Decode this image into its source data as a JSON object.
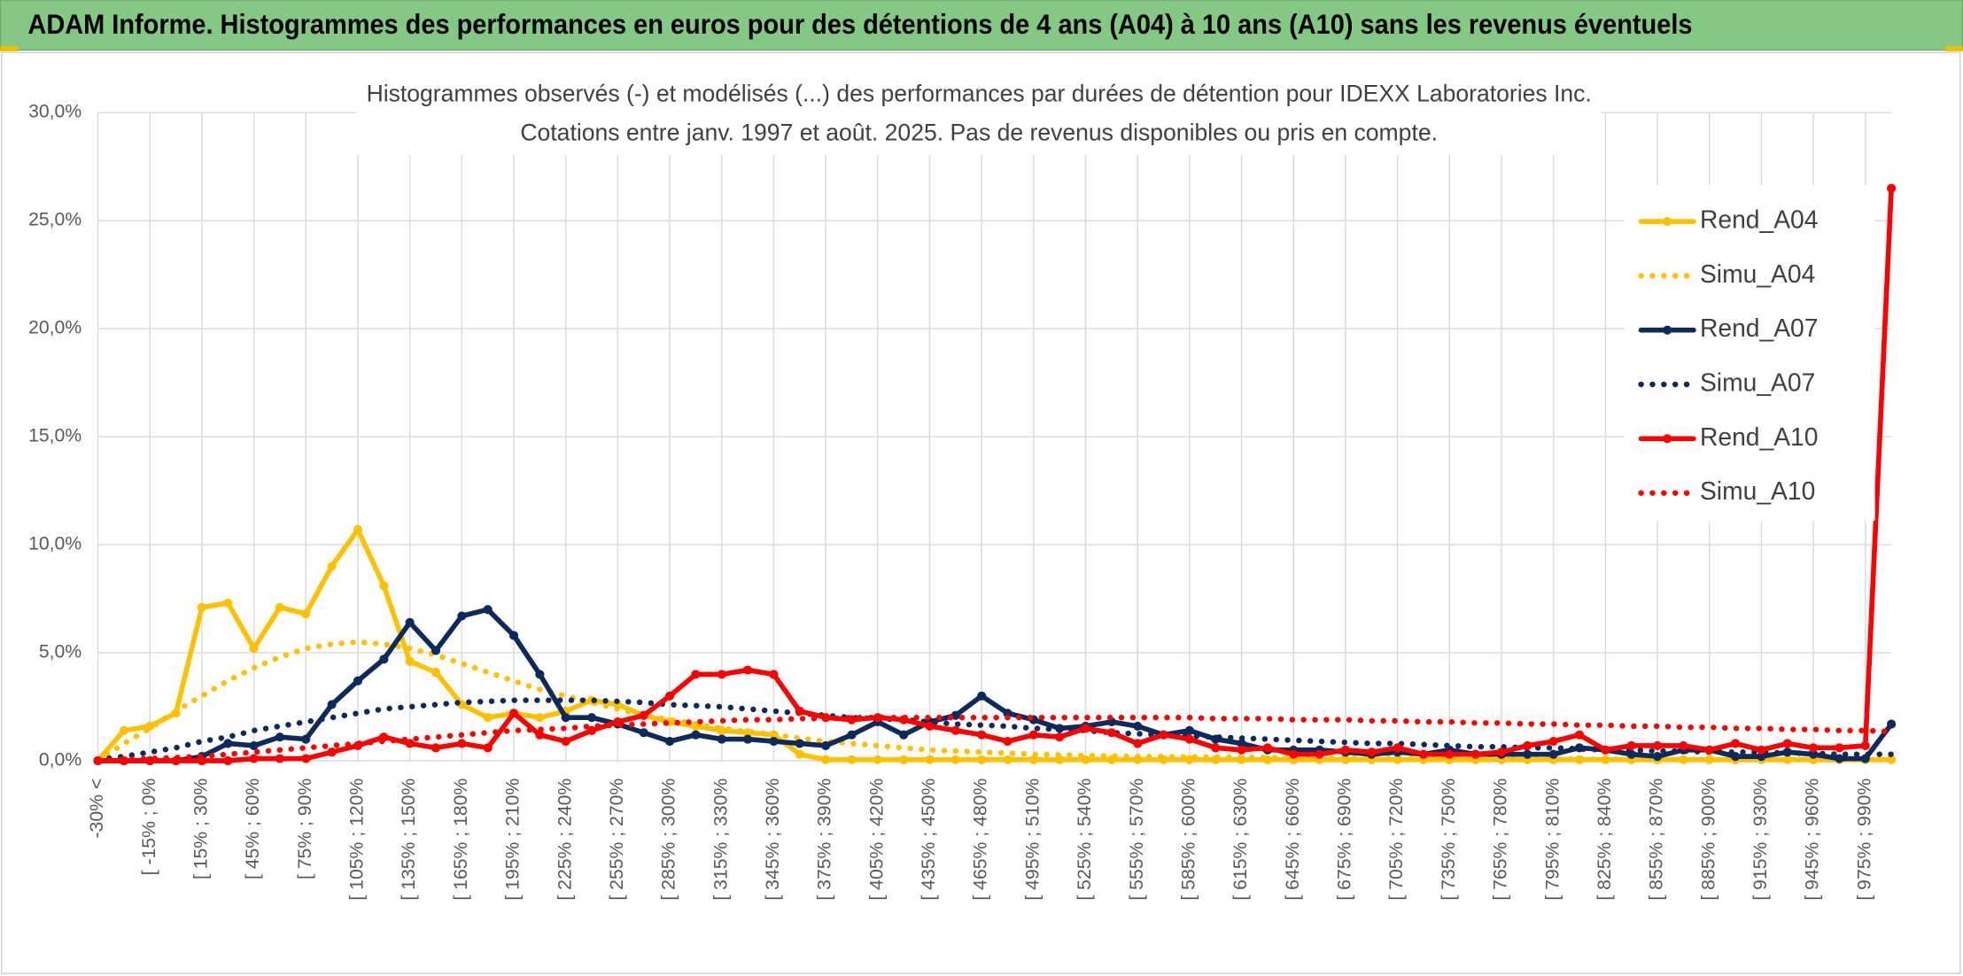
{
  "header": {
    "title": "ADAM Informe. Histogrammes des performances en euros pour des détentions de 4 ans (A04) à 10 ans (A10) sans les revenus éventuels"
  },
  "chart_data": {
    "type": "line",
    "title": [
      "Histogrammes observés (-) et modélisés (...) des performances par durées de détention pour IDEXX Laboratories Inc.",
      "Cotations entre janv. 1997 et août. 2025. Pas de revenus disponibles ou pris en compte."
    ],
    "categories": [
      "-30% <",
      null,
      "[ -15% ; 0%",
      null,
      "[ 15% ; 30%",
      null,
      "[ 45% ; 60%",
      null,
      "[ 75% ; 90%",
      null,
      "[ 105% ; 120%",
      null,
      "[ 135% ; 150%",
      null,
      "[ 165% ; 180%",
      null,
      "[ 195% ; 210%",
      null,
      "[ 225% ; 240%",
      null,
      "[ 255% ; 270%",
      null,
      "[ 285% ; 300%",
      null,
      "[ 315% ; 330%",
      null,
      "[ 345% ; 360%",
      null,
      "[ 375% ; 390%",
      null,
      "[ 405% ; 420%",
      null,
      "[ 435% ; 450%",
      null,
      "[ 465% ; 480%",
      null,
      "[ 495% ; 510%",
      null,
      "[ 525% ; 540%",
      null,
      "[ 555% ; 570%",
      null,
      "[ 585% ; 600%",
      null,
      "[ 615% ; 630%",
      null,
      "[ 645% ; 660%",
      null,
      "[ 675% ; 690%",
      null,
      "[ 705% ; 720%",
      null,
      "[ 735% ; 750%",
      null,
      "[ 765% ; 780%",
      null,
      "[ 795% ; 810%",
      null,
      "[ 825% ; 840%",
      null,
      "[ 855% ; 870%",
      null,
      "[ 885% ; 900%",
      null,
      "[ 915% ; 930%",
      null,
      "[ 945% ; 960%",
      null,
      "[ 975% ; 990%",
      null
    ],
    "series": [
      {
        "name": "Rend_A04",
        "color": "#ffc000",
        "style": "solid",
        "markers": true,
        "values": [
          0,
          1.4,
          1.6,
          2.2,
          7.1,
          7.3,
          5.2,
          7.1,
          6.8,
          9.0,
          10.7,
          8.1,
          4.6,
          4.1,
          2.6,
          2.0,
          2.2,
          2.0,
          2.3,
          2.8,
          2.6,
          2.1,
          1.8,
          1.6,
          1.4,
          1.3,
          1.2,
          0.3,
          0.05,
          0.05,
          0.05,
          0.05,
          0.05,
          0.05,
          0.05,
          0.05,
          0.05,
          0.05,
          0.05,
          0.05,
          0.05,
          0.05,
          0.05,
          0.05,
          0.05,
          0.05,
          0.05,
          0.05,
          0.05,
          0.05,
          0.05,
          0.05,
          0.05,
          0.05,
          0.05,
          0.05,
          0.05,
          0.05,
          0.05,
          0.05,
          0.05,
          0.05,
          0.05,
          0.05,
          0.05,
          0.05,
          0.05,
          0.05,
          0.05,
          0.05
        ]
      },
      {
        "name": "Simu_A04",
        "color": "#ffc000",
        "style": "dotted",
        "markers": false,
        "values": [
          0,
          0.8,
          1.5,
          2.3,
          3.0,
          3.7,
          4.3,
          4.8,
          5.2,
          5.4,
          5.5,
          5.4,
          5.2,
          4.9,
          4.5,
          4.1,
          3.7,
          3.3,
          3.0,
          2.7,
          2.4,
          2.1,
          1.9,
          1.7,
          1.5,
          1.35,
          1.2,
          1.05,
          0.9,
          0.8,
          0.7,
          0.6,
          0.5,
          0.45,
          0.4,
          0.35,
          0.3,
          0.27,
          0.24,
          0.22,
          0.2,
          0.19,
          0.18,
          0.17,
          0.16,
          0.15,
          0.14,
          0.13,
          0.12,
          0.12,
          0.11,
          0.1,
          0.1,
          0.09,
          0.09,
          0.08,
          0.08,
          0.08,
          0.07,
          0.07,
          0.07,
          0.06,
          0.06,
          0.06,
          0.06,
          0.05,
          0.05,
          0.05,
          0.05,
          0.05
        ]
      },
      {
        "name": "Rend_A07",
        "color": "#0e2a5c",
        "style": "solid",
        "markers": true,
        "values": [
          0,
          0,
          0,
          0,
          0.2,
          0.8,
          0.7,
          1.1,
          1.0,
          2.6,
          3.7,
          4.7,
          6.4,
          5.1,
          6.7,
          7.0,
          5.8,
          4.0,
          2.0,
          2.0,
          1.7,
          1.3,
          0.9,
          1.2,
          1.0,
          1.0,
          0.9,
          0.8,
          0.7,
          1.2,
          1.8,
          1.2,
          1.8,
          2.1,
          3.0,
          2.2,
          1.9,
          1.5,
          1.6,
          1.8,
          1.6,
          1.2,
          1.4,
          1.0,
          0.8,
          0.5,
          0.5,
          0.5,
          0.4,
          0.3,
          0.4,
          0.3,
          0.5,
          0.3,
          0.3,
          0.3,
          0.3,
          0.6,
          0.5,
          0.3,
          0.2,
          0.5,
          0.5,
          0.2,
          0.2,
          0.4,
          0.3,
          0.1,
          0.1,
          1.7
        ]
      },
      {
        "name": "Simu_A07",
        "color": "#0e2a5c",
        "style": "dotted",
        "markers": false,
        "values": [
          0.05,
          0.2,
          0.4,
          0.6,
          0.9,
          1.1,
          1.4,
          1.6,
          1.8,
          2.0,
          2.2,
          2.4,
          2.5,
          2.6,
          2.7,
          2.75,
          2.8,
          2.8,
          2.8,
          2.8,
          2.75,
          2.7,
          2.6,
          2.55,
          2.5,
          2.4,
          2.3,
          2.2,
          2.1,
          2.0,
          1.95,
          1.9,
          1.8,
          1.7,
          1.65,
          1.6,
          1.5,
          1.45,
          1.4,
          1.3,
          1.25,
          1.2,
          1.15,
          1.1,
          1.05,
          1.0,
          0.95,
          0.9,
          0.85,
          0.8,
          0.8,
          0.75,
          0.7,
          0.65,
          0.65,
          0.6,
          0.6,
          0.55,
          0.5,
          0.5,
          0.45,
          0.45,
          0.4,
          0.4,
          0.4,
          0.35,
          0.35,
          0.3,
          0.3,
          0.3
        ]
      },
      {
        "name": "Rend_A10",
        "color": "#ff0000",
        "style": "solid",
        "markers": true,
        "values": [
          0,
          0,
          0,
          0,
          0,
          0,
          0.1,
          0.1,
          0.1,
          0.4,
          0.7,
          1.1,
          0.8,
          0.6,
          0.8,
          0.6,
          2.2,
          1.2,
          0.9,
          1.4,
          1.8,
          2.1,
          3.0,
          4.0,
          4.0,
          4.2,
          4.0,
          2.3,
          2.0,
          1.9,
          2.0,
          1.9,
          1.6,
          1.4,
          1.2,
          0.9,
          1.2,
          1.1,
          1.5,
          1.3,
          0.8,
          1.2,
          1.0,
          0.6,
          0.5,
          0.6,
          0.3,
          0.3,
          0.5,
          0.4,
          0.6,
          0.3,
          0.3,
          0.3,
          0.4,
          0.7,
          0.9,
          1.2,
          0.5,
          0.7,
          0.7,
          0.7,
          0.5,
          0.8,
          0.5,
          0.8,
          0.6,
          0.6,
          0.7,
          26.5
        ]
      },
      {
        "name": "Simu_A10",
        "color": "#ff0000",
        "style": "dotted",
        "markers": false,
        "values": [
          0,
          0.05,
          0.1,
          0.15,
          0.2,
          0.3,
          0.4,
          0.5,
          0.6,
          0.7,
          0.8,
          0.9,
          1.0,
          1.1,
          1.2,
          1.3,
          1.4,
          1.45,
          1.5,
          1.6,
          1.65,
          1.7,
          1.75,
          1.8,
          1.85,
          1.9,
          1.9,
          1.95,
          1.95,
          2.0,
          2.0,
          2.0,
          2.0,
          2.0,
          2.0,
          2.0,
          2.0,
          2.0,
          2.0,
          2.0,
          2.0,
          2.0,
          2.0,
          1.95,
          1.95,
          1.95,
          1.9,
          1.9,
          1.9,
          1.85,
          1.85,
          1.8,
          1.8,
          1.75,
          1.75,
          1.7,
          1.7,
          1.65,
          1.65,
          1.6,
          1.6,
          1.55,
          1.55,
          1.5,
          1.5,
          1.45,
          1.45,
          1.4,
          1.4,
          1.35
        ]
      }
    ],
    "ylim": [
      0,
      30
    ],
    "yticks": [
      {
        "value": 0,
        "label": "0,0%"
      },
      {
        "value": 5,
        "label": "5,0%"
      },
      {
        "value": 10,
        "label": "10,0%"
      },
      {
        "value": 15,
        "label": "15,0%"
      },
      {
        "value": 20,
        "label": "20,0%"
      },
      {
        "value": 25,
        "label": "25,0%"
      },
      {
        "value": 30,
        "label": "30,0%"
      }
    ],
    "grid": true,
    "legend": "right"
  }
}
